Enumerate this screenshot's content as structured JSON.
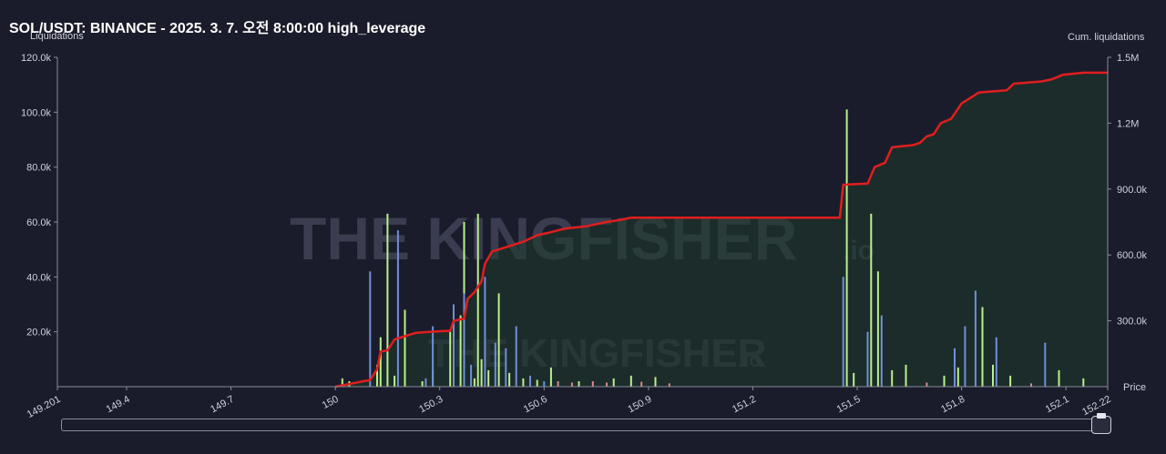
{
  "title": "SOL/USDT: BINANCE - 2025. 3. 7. 오전 8:00:00 high_leverage",
  "watermark": {
    "text": "THE KINGFISHER",
    "suffix": ".io"
  },
  "colors": {
    "background": "#1b1c2b",
    "cumulative_line": "#e01e1e",
    "cumulative_fill": "#1e3a2a",
    "long_bars": "#b9f08a",
    "short_bars": "#6f8fd8",
    "misc_bars": "#d98a8a"
  },
  "chart_data": {
    "type": "bar",
    "title": "SOL/USDT: BINANCE - 2025. 3. 7. 오전 8:00:00 high_leverage",
    "ylabel": "Liquidations",
    "y2label": "Cum. liquidations",
    "xlabel": "Price",
    "xlim": [
      149.201,
      152.22
    ],
    "ylim": [
      0,
      120000
    ],
    "y2lim": [
      0,
      1500000
    ],
    "x_ticks": [
      "149.201",
      "149.4",
      "149.7",
      "150",
      "150.3",
      "150.6",
      "150.9",
      "151.2",
      "151.5",
      "151.8",
      "152.1",
      "152.22"
    ],
    "x_tick_values": [
      149.201,
      149.4,
      149.7,
      150,
      150.3,
      150.6,
      150.9,
      151.2,
      151.5,
      151.8,
      152.1,
      152.22
    ],
    "y_ticks": [
      "20.0k",
      "40.0k",
      "60.0k",
      "80.0k",
      "100.0k",
      "120.0k"
    ],
    "y_tick_values": [
      20000,
      40000,
      60000,
      80000,
      100000,
      120000
    ],
    "y2_ticks": [
      "300.0k",
      "600.0k",
      "900.0k",
      "1.2M",
      "1.5M"
    ],
    "y2_tick_values": [
      300000,
      600000,
      900000,
      1200000,
      1500000
    ],
    "grid": false,
    "series": [
      {
        "kind": "bars-long",
        "color": "#b9f08a",
        "points": [
          [
            150.02,
            3000
          ],
          [
            150.04,
            2000
          ],
          [
            150.12,
            8000
          ],
          [
            150.13,
            18000
          ],
          [
            150.15,
            63000
          ],
          [
            150.17,
            4000
          ],
          [
            150.2,
            28000
          ],
          [
            150.25,
            2000
          ],
          [
            150.28,
            6000
          ],
          [
            150.33,
            20000
          ],
          [
            150.36,
            26000
          ],
          [
            150.37,
            60000
          ],
          [
            150.4,
            3000
          ],
          [
            150.41,
            63000
          ],
          [
            150.42,
            10000
          ],
          [
            150.44,
            6000
          ],
          [
            150.47,
            34000
          ],
          [
            150.5,
            5000
          ],
          [
            150.54,
            3000
          ],
          [
            150.58,
            2500
          ],
          [
            150.62,
            7000
          ],
          [
            150.7,
            2000
          ],
          [
            150.8,
            3000
          ],
          [
            150.85,
            4000
          ],
          [
            150.92,
            3500
          ],
          [
            151.47,
            101000
          ],
          [
            151.49,
            5000
          ],
          [
            151.54,
            63000
          ],
          [
            151.56,
            42000
          ],
          [
            151.6,
            6000
          ],
          [
            151.64,
            8000
          ],
          [
            151.75,
            4000
          ],
          [
            151.79,
            7000
          ],
          [
            151.86,
            29000
          ],
          [
            151.89,
            8000
          ],
          [
            151.94,
            4000
          ],
          [
            152.08,
            6000
          ],
          [
            152.15,
            3000
          ]
        ]
      },
      {
        "kind": "bars-short",
        "color": "#6f8fd8",
        "points": [
          [
            150.1,
            42000
          ],
          [
            150.18,
            57000
          ],
          [
            150.26,
            3000
          ],
          [
            150.28,
            22000
          ],
          [
            150.34,
            30000
          ],
          [
            150.37,
            34000
          ],
          [
            150.39,
            8000
          ],
          [
            150.43,
            40000
          ],
          [
            150.46,
            16000
          ],
          [
            150.49,
            14000
          ],
          [
            150.52,
            22000
          ],
          [
            150.56,
            4000
          ],
          [
            150.6,
            2000
          ],
          [
            151.46,
            40000
          ],
          [
            151.53,
            20000
          ],
          [
            151.57,
            26000
          ],
          [
            151.78,
            14000
          ],
          [
            151.81,
            22000
          ],
          [
            151.84,
            35000
          ],
          [
            151.9,
            18000
          ],
          [
            152.04,
            16000
          ]
        ]
      },
      {
        "kind": "bars-misc",
        "color": "#d98a8a",
        "points": [
          [
            150.64,
            2000
          ],
          [
            150.68,
            1500
          ],
          [
            150.74,
            2000
          ],
          [
            150.78,
            1500
          ],
          [
            150.88,
            1800
          ],
          [
            150.96,
            1200
          ],
          [
            151.7,
            1500
          ],
          [
            152.0,
            1200
          ]
        ]
      },
      {
        "kind": "cumulative-line",
        "color": "#e01e1e",
        "points": [
          [
            150.0,
            0
          ],
          [
            150.05,
            15000
          ],
          [
            150.08,
            25000
          ],
          [
            150.1,
            30000
          ],
          [
            150.12,
            80000
          ],
          [
            150.13,
            160000
          ],
          [
            150.15,
            165000
          ],
          [
            150.17,
            215000
          ],
          [
            150.2,
            230000
          ],
          [
            150.23,
            245000
          ],
          [
            150.27,
            250000
          ],
          [
            150.33,
            255000
          ],
          [
            150.34,
            300000
          ],
          [
            150.37,
            310000
          ],
          [
            150.38,
            400000
          ],
          [
            150.4,
            430000
          ],
          [
            150.42,
            480000
          ],
          [
            150.43,
            560000
          ],
          [
            150.45,
            615000
          ],
          [
            150.47,
            625000
          ],
          [
            150.5,
            640000
          ],
          [
            150.54,
            660000
          ],
          [
            150.58,
            690000
          ],
          [
            150.61,
            700000
          ],
          [
            150.66,
            720000
          ],
          [
            150.72,
            730000
          ],
          [
            150.78,
            750000
          ],
          [
            150.82,
            760000
          ],
          [
            150.85,
            770000
          ],
          [
            151.0,
            770000
          ],
          [
            151.2,
            770000
          ],
          [
            151.45,
            770000
          ],
          [
            151.46,
            920000
          ],
          [
            151.53,
            925000
          ],
          [
            151.55,
            1000000
          ],
          [
            151.58,
            1020000
          ],
          [
            151.6,
            1090000
          ],
          [
            151.66,
            1100000
          ],
          [
            151.68,
            1110000
          ],
          [
            151.7,
            1140000
          ],
          [
            151.72,
            1150000
          ],
          [
            151.74,
            1200000
          ],
          [
            151.77,
            1220000
          ],
          [
            151.8,
            1290000
          ],
          [
            151.83,
            1320000
          ],
          [
            151.85,
            1340000
          ],
          [
            151.93,
            1350000
          ],
          [
            151.95,
            1380000
          ],
          [
            152.03,
            1390000
          ],
          [
            152.06,
            1400000
          ],
          [
            152.09,
            1420000
          ],
          [
            152.15,
            1430000
          ],
          [
            152.22,
            1430000
          ]
        ]
      }
    ]
  }
}
